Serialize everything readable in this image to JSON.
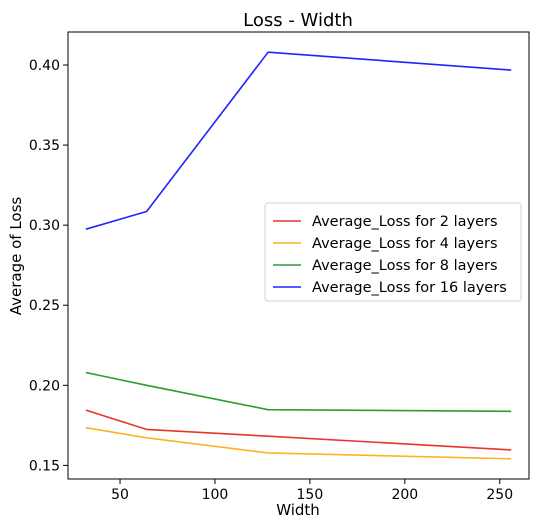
{
  "chart_data": {
    "type": "line",
    "title": "Loss - Width",
    "xlabel": "Width",
    "ylabel": "Average of Loss",
    "x": [
      32,
      64,
      128,
      256
    ],
    "xlim": [
      22.6,
      265.4
    ],
    "ylim": [
      0.1415,
      0.4206
    ],
    "xticks": [
      50,
      100,
      150,
      200,
      250
    ],
    "xtick_labels": [
      "50",
      "100",
      "150",
      "200",
      "250"
    ],
    "yticks": [
      0.15,
      0.2,
      0.25,
      0.3,
      0.35,
      0.4
    ],
    "ytick_labels": [
      "0.15",
      "0.20",
      "0.25",
      "0.30",
      "0.35",
      "0.40"
    ],
    "grid": false,
    "legend_position": "center-right",
    "series": [
      {
        "name": "Average_Loss for 2 layers",
        "color": "#e8352d",
        "values": [
          0.1845,
          0.1725,
          0.1682,
          0.1597
        ]
      },
      {
        "name": "Average_Loss for 4 layers",
        "color": "#ffb223",
        "values": [
          0.1735,
          0.1672,
          0.1578,
          0.1541
        ]
      },
      {
        "name": "Average_Loss for 8 layers",
        "color": "#2e9b2e",
        "values": [
          0.208,
          0.2,
          0.1848,
          0.1838
        ]
      },
      {
        "name": "Average_Loss for 16 layers",
        "color": "#2222ff",
        "values": [
          0.2975,
          0.3085,
          0.408,
          0.3968
        ]
      }
    ]
  }
}
